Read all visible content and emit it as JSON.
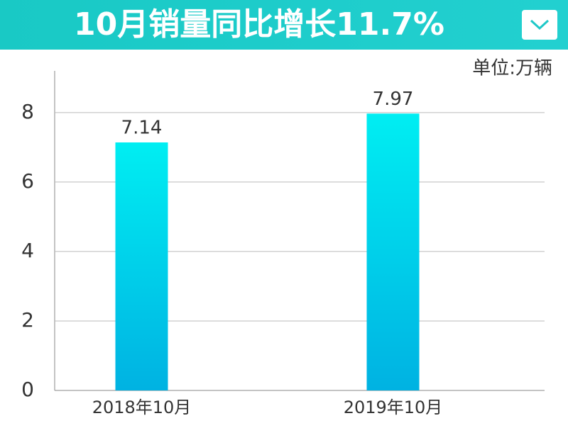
{
  "chart_data": {
    "type": "bar",
    "title": "10月销量同比增长11.7%",
    "unit": "单位:万辆",
    "categories": [
      "2018年10月",
      "2019年10月"
    ],
    "values": [
      7.14,
      7.97
    ],
    "color": [
      "#00eef2",
      "#00b2e2"
    ],
    "ylim": [
      0,
      9.2
    ],
    "yticks": [
      0,
      2,
      4,
      6,
      8
    ],
    "grid": true
  }
}
